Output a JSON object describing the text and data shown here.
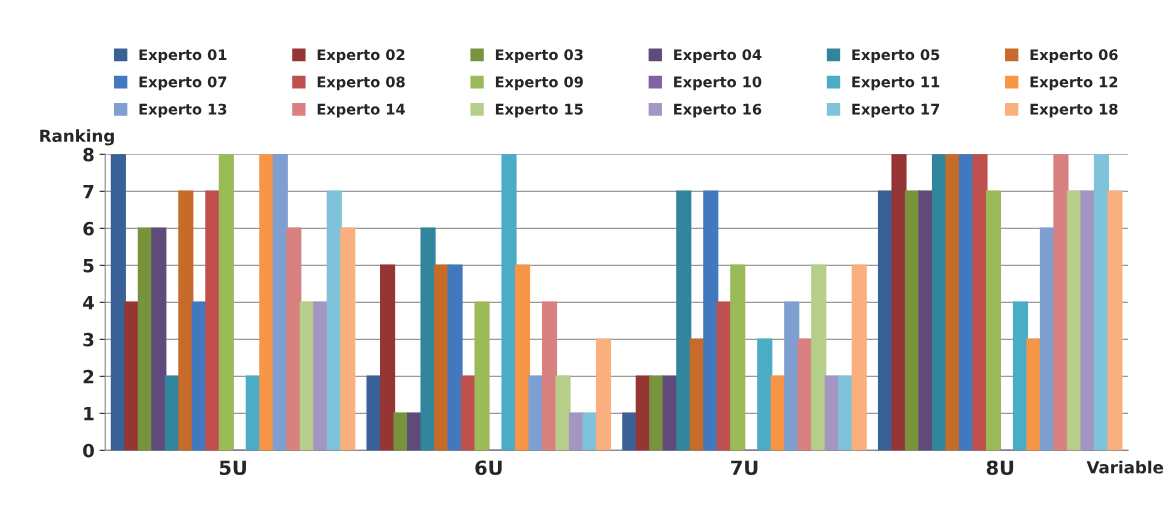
{
  "chart_data": {
    "type": "bar",
    "ylabel": "Ranking",
    "xlabel": "Variable",
    "categories": [
      "5U",
      "6U",
      "7U",
      "8U"
    ],
    "ylim": [
      0,
      8
    ],
    "yticks": [
      0,
      1,
      2,
      3,
      4,
      5,
      6,
      7,
      8
    ],
    "grid": "y",
    "legend": "top",
    "series": [
      {
        "name": "Experto 01",
        "color": "#3a6197",
        "values": [
          8,
          2,
          1,
          7
        ]
      },
      {
        "name": "Experto 02",
        "color": "#963634",
        "values": [
          4,
          5,
          2,
          8
        ]
      },
      {
        "name": "Experto 03",
        "color": "#77933c",
        "values": [
          6,
          1,
          2,
          7
        ]
      },
      {
        "name": "Experto 04",
        "color": "#604a7b",
        "values": [
          6,
          1,
          2,
          7
        ]
      },
      {
        "name": "Experto 05",
        "color": "#31859c",
        "values": [
          2,
          6,
          7,
          8
        ]
      },
      {
        "name": "Experto 06",
        "color": "#c66b2a",
        "values": [
          7,
          5,
          3,
          8
        ]
      },
      {
        "name": "Experto 07",
        "color": "#4279be",
        "values": [
          4,
          5,
          7,
          8
        ]
      },
      {
        "name": "Experto 08",
        "color": "#c0504d",
        "values": [
          7,
          2,
          4,
          8
        ]
      },
      {
        "name": "Experto 09",
        "color": "#9bbb59",
        "values": [
          8,
          4,
          5,
          7
        ]
      },
      {
        "name": "Experto 10",
        "color": "#8064a2",
        "values": [
          0,
          0,
          0,
          0
        ]
      },
      {
        "name": "Experto 11",
        "color": "#4bacc6",
        "values": [
          2,
          8,
          3,
          4
        ]
      },
      {
        "name": "Experto 12",
        "color": "#f79646",
        "values": [
          8,
          5,
          2,
          3
        ]
      },
      {
        "name": "Experto 13",
        "color": "#7f9fd0",
        "values": [
          8,
          2,
          4,
          6
        ]
      },
      {
        "name": "Experto 14",
        "color": "#d98080",
        "values": [
          6,
          4,
          3,
          8
        ]
      },
      {
        "name": "Experto 15",
        "color": "#b5cf8a",
        "values": [
          4,
          2,
          5,
          7
        ]
      },
      {
        "name": "Experto 16",
        "color": "#a595c3",
        "values": [
          4,
          1,
          2,
          7
        ]
      },
      {
        "name": "Experto 17",
        "color": "#7ec3da",
        "values": [
          7,
          1,
          2,
          8
        ]
      },
      {
        "name": "Experto 18",
        "color": "#fab07e",
        "values": [
          6,
          3,
          5,
          7
        ]
      }
    ]
  }
}
